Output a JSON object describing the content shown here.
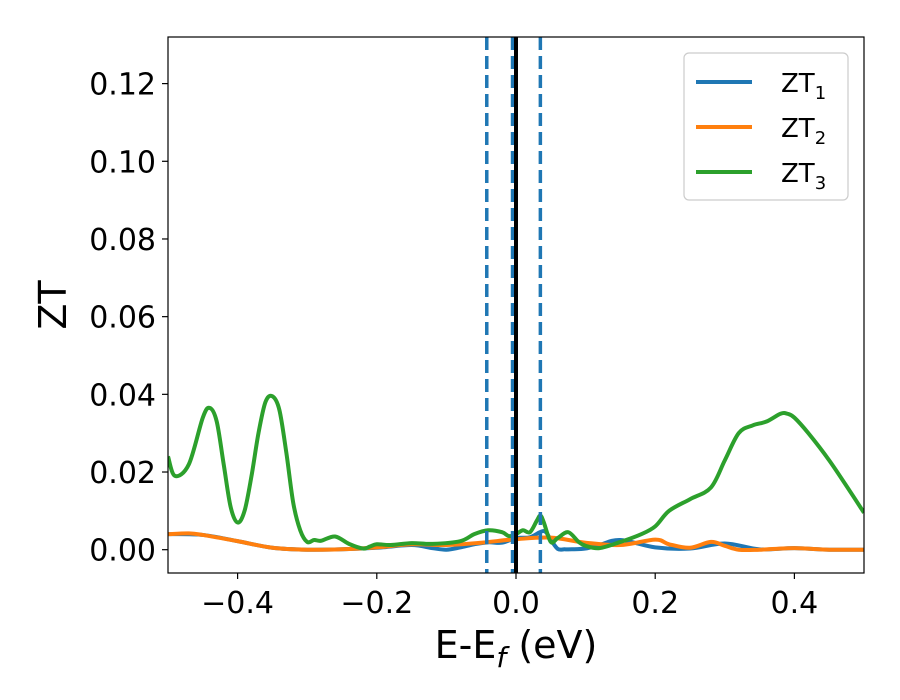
{
  "chart_data": {
    "type": "line",
    "xlabel_main": "E-E",
    "xlabel_sub": "f",
    "xlabel_unit": " (eV)",
    "ylabel": "ZT",
    "xlim": [
      -0.5,
      0.5
    ],
    "ylim": [
      -0.006,
      0.132
    ],
    "xticks": [
      -0.4,
      -0.2,
      0.0,
      0.2,
      0.4
    ],
    "xtick_labels": [
      "−0.4",
      "−0.2",
      "0.0",
      "0.2",
      "0.4"
    ],
    "yticks": [
      0.0,
      0.02,
      0.04,
      0.06,
      0.08,
      0.1,
      0.12
    ],
    "ytick_labels": [
      "0.00",
      "0.02",
      "0.04",
      "0.06",
      "0.08",
      "0.10",
      "0.12"
    ],
    "grid": false,
    "legend_position": "top-right",
    "vertical_lines": [
      {
        "x": -0.042,
        "style": "dashed",
        "color": "#1f77b4"
      },
      {
        "x": -0.005,
        "style": "dashed",
        "color": "#1f77b4"
      },
      {
        "x": 0.035,
        "style": "dashed",
        "color": "#1f77b4"
      },
      {
        "x": 0.0,
        "style": "solid",
        "color": "#000000"
      }
    ],
    "series": [
      {
        "name_main": "ZT",
        "name_sub": "1",
        "color": "#1f77b4",
        "x": [
          -0.5,
          -0.45,
          -0.4,
          -0.35,
          -0.3,
          -0.25,
          -0.2,
          -0.15,
          -0.12,
          -0.1,
          -0.08,
          -0.06,
          -0.04,
          -0.02,
          0.0,
          0.02,
          0.04,
          0.05,
          0.06,
          0.07,
          0.08,
          0.1,
          0.12,
          0.15,
          0.2,
          0.25,
          0.3,
          0.35,
          0.4,
          0.45,
          0.5
        ],
        "y": [
          0.004,
          0.0038,
          0.0022,
          0.0005,
          0.0,
          0.0001,
          0.0005,
          0.0012,
          0.0004,
          0.0,
          0.0006,
          0.0014,
          0.0019,
          0.0018,
          0.003,
          0.0032,
          0.0048,
          0.0025,
          0.0002,
          0.0001,
          0.0001,
          0.0003,
          0.0012,
          0.0025,
          0.0006,
          0.0003,
          0.0016,
          0.0001,
          0.0004,
          0.0,
          0.0
        ]
      },
      {
        "name_main": "ZT",
        "name_sub": "2",
        "color": "#ff7f0e",
        "x": [
          -0.5,
          -0.47,
          -0.45,
          -0.4,
          -0.35,
          -0.3,
          -0.25,
          -0.2,
          -0.15,
          -0.1,
          -0.05,
          0.0,
          0.05,
          0.1,
          0.15,
          0.2,
          0.22,
          0.25,
          0.28,
          0.3,
          0.32,
          0.35,
          0.4,
          0.45,
          0.5
        ],
        "y": [
          0.004,
          0.0042,
          0.0038,
          0.0022,
          0.0005,
          0.0,
          0.0001,
          0.0006,
          0.0014,
          0.0012,
          0.0018,
          0.0027,
          0.0031,
          0.0018,
          0.0012,
          0.0026,
          0.0014,
          0.0005,
          0.002,
          0.001,
          0.0,
          0.0,
          0.0004,
          0.0,
          0.0
        ]
      },
      {
        "name_main": "ZT",
        "name_sub": "3",
        "color": "#2ca02c",
        "x": [
          -0.5,
          -0.49,
          -0.47,
          -0.45,
          -0.44,
          -0.43,
          -0.42,
          -0.41,
          -0.4,
          -0.39,
          -0.38,
          -0.37,
          -0.36,
          -0.35,
          -0.34,
          -0.33,
          -0.32,
          -0.31,
          -0.3,
          -0.29,
          -0.28,
          -0.26,
          -0.24,
          -0.22,
          -0.21,
          -0.2,
          -0.18,
          -0.15,
          -0.12,
          -0.08,
          -0.06,
          -0.04,
          -0.02,
          -0.01,
          0.0,
          0.01,
          0.02,
          0.03,
          0.035,
          0.04,
          0.05,
          0.06,
          0.075,
          0.09,
          0.1,
          0.12,
          0.15,
          0.18,
          0.2,
          0.22,
          0.25,
          0.28,
          0.3,
          0.32,
          0.34,
          0.36,
          0.38,
          0.39,
          0.4,
          0.42,
          0.45,
          0.48,
          0.5
        ],
        "y": [
          0.024,
          0.019,
          0.022,
          0.034,
          0.0365,
          0.033,
          0.022,
          0.011,
          0.007,
          0.01,
          0.019,
          0.03,
          0.038,
          0.0395,
          0.036,
          0.025,
          0.012,
          0.005,
          0.002,
          0.0025,
          0.0023,
          0.0034,
          0.0015,
          0.0003,
          0.0008,
          0.0014,
          0.0012,
          0.0017,
          0.0015,
          0.0022,
          0.004,
          0.005,
          0.0045,
          0.0035,
          0.004,
          0.005,
          0.0045,
          0.0075,
          0.0088,
          0.007,
          0.002,
          0.003,
          0.0045,
          0.002,
          0.001,
          0.0004,
          0.002,
          0.004,
          0.006,
          0.01,
          0.013,
          0.016,
          0.023,
          0.03,
          0.032,
          0.033,
          0.035,
          0.035,
          0.034,
          0.03,
          0.023,
          0.015,
          0.0095
        ]
      }
    ]
  }
}
